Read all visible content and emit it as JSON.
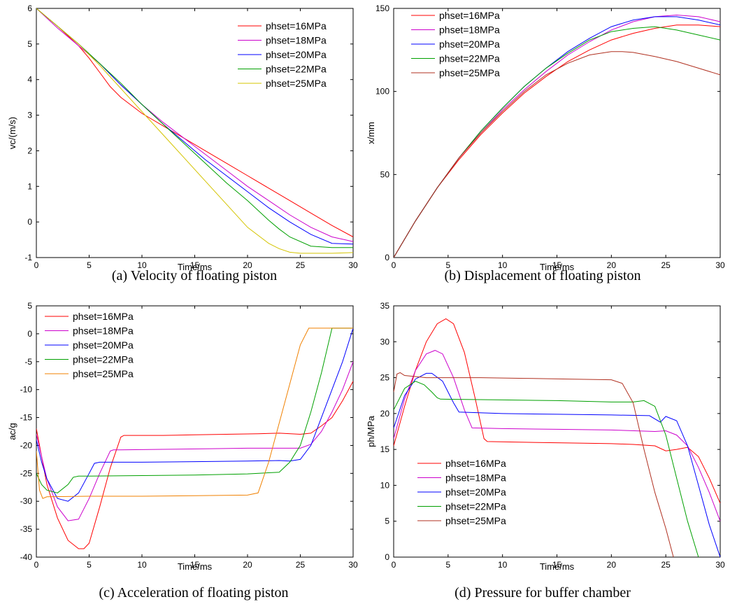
{
  "chart_data": [
    {
      "type": "line",
      "caption": "(a) Velocity of floating piston",
      "xlabel": "Time/ms",
      "ylabel": "vc/(m/s)",
      "xlim": [
        0,
        30
      ],
      "ylim": [
        -1,
        6
      ],
      "xticks": [
        0,
        5,
        10,
        15,
        20,
        25,
        30
      ],
      "yticks": [
        -1,
        0,
        1,
        2,
        3,
        4,
        5,
        6
      ],
      "legend_position": "top-right",
      "series": [
        {
          "name": "phset=16MPa",
          "color": "#ff0000",
          "x": [
            0,
            2,
            4,
            5,
            6,
            7,
            8,
            10,
            12,
            14,
            16,
            18,
            20,
            22,
            24,
            26,
            28,
            30
          ],
          "y": [
            6,
            5.5,
            4.95,
            4.6,
            4.2,
            3.8,
            3.5,
            3.05,
            2.7,
            2.35,
            2,
            1.65,
            1.3,
            0.95,
            0.6,
            0.25,
            -0.1,
            -0.42
          ]
        },
        {
          "name": "phset=18MPa",
          "color": "#cc00cc",
          "x": [
            0,
            2,
            4,
            6,
            8,
            10,
            12,
            14,
            16,
            18,
            20,
            22,
            24,
            26,
            28,
            30
          ],
          "y": [
            6,
            5.45,
            4.95,
            4.45,
            3.85,
            3.3,
            2.8,
            2.35,
            1.9,
            1.45,
            1.0,
            0.6,
            0.2,
            -0.15,
            -0.42,
            -0.55
          ]
        },
        {
          "name": "phset=20MPa",
          "color": "#0000ff",
          "x": [
            0,
            2,
            4,
            6,
            8,
            10,
            12,
            14,
            16,
            18,
            20,
            22,
            24,
            26,
            28,
            30
          ],
          "y": [
            6,
            5.5,
            5.0,
            4.45,
            3.85,
            3.3,
            2.75,
            2.25,
            1.75,
            1.3,
            0.85,
            0.4,
            0.0,
            -0.35,
            -0.6,
            -0.62
          ]
        },
        {
          "name": "phset=22MPa",
          "color": "#00a000",
          "x": [
            0,
            2,
            4,
            6,
            8,
            10,
            12,
            14,
            16,
            18,
            20,
            22,
            23,
            24,
            26,
            28,
            30
          ],
          "y": [
            6,
            5.5,
            5.0,
            4.45,
            3.9,
            3.3,
            2.75,
            2.2,
            1.65,
            1.1,
            0.6,
            0.05,
            -0.2,
            -0.42,
            -0.68,
            -0.72,
            -0.72
          ]
        },
        {
          "name": "phset=25MPa",
          "color": "#d4c400",
          "x": [
            0,
            2,
            4,
            6,
            8,
            10,
            12,
            14,
            16,
            18,
            20,
            22,
            23,
            24,
            25,
            26,
            28,
            30
          ],
          "y": [
            6,
            5.5,
            5.0,
            4.4,
            3.75,
            3.1,
            2.45,
            1.8,
            1.15,
            0.5,
            -0.15,
            -0.6,
            -0.75,
            -0.85,
            -0.88,
            -0.88,
            -0.88,
            -0.86
          ]
        }
      ]
    },
    {
      "type": "line",
      "caption": "(b) Displacement of floating piston",
      "xlabel": "Time/ms",
      "ylabel": "x/mm",
      "xlim": [
        0,
        30
      ],
      "ylim": [
        0,
        150
      ],
      "xticks": [
        0,
        5,
        10,
        15,
        20,
        25,
        30
      ],
      "yticks": [
        0,
        50,
        100,
        150
      ],
      "legend_position": "top-left",
      "series": [
        {
          "name": "phset=16MPa",
          "color": "#ff0000",
          "x": [
            0,
            2,
            4,
            6,
            8,
            10,
            12,
            14,
            16,
            18,
            20,
            22,
            24,
            26,
            28,
            30
          ],
          "y": [
            0,
            22,
            42,
            59,
            74,
            87,
            99,
            109,
            118,
            125,
            131,
            135,
            138,
            140,
            140,
            139
          ]
        },
        {
          "name": "phset=18MPa",
          "color": "#cc00cc",
          "x": [
            0,
            2,
            4,
            6,
            8,
            10,
            12,
            14,
            16,
            18,
            20,
            22,
            24,
            26,
            28,
            30
          ],
          "y": [
            0,
            22,
            42,
            60,
            75,
            89,
            101,
            112,
            122,
            130,
            137,
            142,
            145,
            146,
            145,
            142
          ]
        },
        {
          "name": "phset=20MPa",
          "color": "#0000ff",
          "x": [
            0,
            2,
            4,
            6,
            8,
            10,
            12,
            14,
            16,
            18,
            20,
            22,
            24,
            26,
            28,
            30
          ],
          "y": [
            0,
            22,
            42,
            60,
            76,
            90,
            103,
            114,
            124,
            132,
            139,
            143,
            145,
            145,
            143,
            140
          ]
        },
        {
          "name": "phset=22MPa",
          "color": "#00a000",
          "x": [
            0,
            2,
            4,
            6,
            8,
            10,
            12,
            14,
            16,
            18,
            20,
            22,
            24,
            26,
            28,
            30
          ],
          "y": [
            0,
            22,
            42,
            60,
            76,
            90,
            103,
            114,
            123,
            131,
            136,
            138,
            139,
            137,
            134,
            131
          ]
        },
        {
          "name": "phset=25MPa",
          "color": "#b03020",
          "x": [
            0,
            2,
            4,
            6,
            8,
            10,
            12,
            14,
            16,
            18,
            20,
            21,
            22,
            24,
            26,
            28,
            30
          ],
          "y": [
            0,
            22,
            42,
            60,
            75,
            88,
            100,
            110,
            117,
            122,
            124,
            124,
            123.5,
            121,
            118,
            114,
            110
          ]
        }
      ]
    },
    {
      "type": "line",
      "caption": "(c) Acceleration of floating piston",
      "xlabel": "Time/ms",
      "ylabel": "ac/g",
      "xlim": [
        0,
        30
      ],
      "ylim": [
        -40,
        5
      ],
      "xticks": [
        0,
        5,
        10,
        15,
        20,
        25,
        30
      ],
      "yticks": [
        -40,
        -35,
        -30,
        -25,
        -20,
        -15,
        -10,
        -5,
        0,
        5
      ],
      "legend_position": "top-left",
      "series": [
        {
          "name": "phset=16MPa",
          "color": "#ff0000",
          "x": [
            0,
            0.5,
            1,
            2,
            3,
            4,
            4.5,
            5,
            6,
            7,
            8,
            8.3,
            9,
            12,
            15,
            18,
            21,
            23,
            25,
            26,
            27,
            28,
            29,
            30
          ],
          "y": [
            -17,
            -22,
            -27,
            -33,
            -37,
            -38.5,
            -38.5,
            -37.5,
            -31,
            -24,
            -18.5,
            -18.2,
            -18.2,
            -18.2,
            -18.1,
            -18.0,
            -17.9,
            -17.8,
            -18.0,
            -17.8,
            -16.5,
            -15,
            -12,
            -8.5
          ]
        },
        {
          "name": "phset=18MPa",
          "color": "#cc00cc",
          "x": [
            0,
            0.5,
            1,
            2,
            3,
            4,
            5,
            6,
            7,
            7.3,
            8,
            12,
            16,
            20,
            23,
            25,
            26,
            27,
            28,
            29,
            30
          ],
          "y": [
            -18,
            -22,
            -26,
            -31,
            -33.5,
            -33.2,
            -29.5,
            -25,
            -21,
            -20.8,
            -20.8,
            -20.7,
            -20.6,
            -20.5,
            -20.5,
            -20.5,
            -19.8,
            -17.5,
            -14,
            -10,
            -5
          ]
        },
        {
          "name": "phset=20MPa",
          "color": "#0000ff",
          "x": [
            0,
            0.5,
            1,
            2,
            3,
            4,
            5,
            5.5,
            6,
            10,
            15,
            20,
            23,
            24,
            25,
            26,
            27,
            28,
            29,
            30
          ],
          "y": [
            -19,
            -23,
            -26,
            -29.5,
            -30,
            -28.5,
            -25,
            -23.2,
            -23.0,
            -23.0,
            -22.9,
            -22.8,
            -22.7,
            -22.8,
            -22.5,
            -20,
            -15,
            -10,
            -5,
            1
          ]
        },
        {
          "name": "phset=22MPa",
          "color": "#00a000",
          "x": [
            0,
            0.5,
            1,
            2,
            3,
            3.5,
            4,
            5,
            10,
            15,
            20,
            23,
            24,
            25,
            26,
            27,
            28,
            28.5,
            30
          ],
          "y": [
            -25,
            -27,
            -28,
            -28.5,
            -27,
            -25.7,
            -25.5,
            -25.5,
            -25.4,
            -25.3,
            -25.1,
            -24.8,
            -23,
            -20,
            -14,
            -7,
            1,
            1,
            1
          ]
        },
        {
          "name": "phset=25MPa",
          "color": "#f08000",
          "x": [
            0,
            0.3,
            0.6,
            1,
            5,
            10,
            15,
            20,
            21,
            22,
            23,
            24,
            25,
            25.8,
            26,
            28,
            30
          ],
          "y": [
            -21,
            -28,
            -29.5,
            -29.2,
            -29.1,
            -29.1,
            -29.0,
            -28.9,
            -28.5,
            -23,
            -16,
            -9,
            -2,
            1,
            1,
            1,
            1
          ]
        }
      ]
    },
    {
      "type": "line",
      "caption": "(d) Pressure for buffer chamber",
      "xlabel": "Time/ms",
      "ylabel": "ph/MPa",
      "xlim": [
        0,
        30
      ],
      "ylim": [
        0,
        35
      ],
      "xticks": [
        0,
        5,
        10,
        15,
        20,
        25,
        30
      ],
      "yticks": [
        0,
        5,
        10,
        15,
        20,
        25,
        30,
        35
      ],
      "legend_position": "bottom-left",
      "series": [
        {
          "name": "phset=16MPa",
          "color": "#ff0000",
          "x": [
            0,
            1,
            2,
            3,
            4,
            4.8,
            5.5,
            6.5,
            7.5,
            8.3,
            8.6,
            12,
            16,
            20,
            22,
            23,
            24,
            25,
            26,
            27,
            28,
            29,
            30
          ],
          "y": [
            15.5,
            21,
            26,
            30,
            32.5,
            33.2,
            32.5,
            28.5,
            22,
            16.5,
            16.1,
            16.0,
            15.9,
            15.8,
            15.7,
            15.6,
            15.5,
            14.8,
            15.0,
            15.3,
            14,
            11,
            7.5
          ]
        },
        {
          "name": "phset=18MPa",
          "color": "#cc00cc",
          "x": [
            0,
            1,
            2,
            3,
            3.8,
            4.5,
            5.5,
            6.5,
            7.2,
            10,
            15,
            20,
            24,
            25,
            26,
            27,
            28,
            29,
            30
          ],
          "y": [
            16.5,
            22,
            26,
            28.3,
            28.8,
            28.3,
            25,
            20.5,
            18.0,
            17.9,
            17.8,
            17.7,
            17.5,
            17.6,
            17.0,
            15.5,
            12.5,
            9,
            5
          ]
        },
        {
          "name": "phset=20MPa",
          "color": "#0000ff",
          "x": [
            0,
            1,
            2,
            3,
            3.5,
            4.5,
            5.5,
            6,
            10,
            15,
            20,
            23.5,
            24.5,
            25,
            26,
            27,
            28,
            29,
            30
          ],
          "y": [
            18,
            22.5,
            24.8,
            25.6,
            25.6,
            24.5,
            21.5,
            20.2,
            20.0,
            19.9,
            19.8,
            19.7,
            18.8,
            19.6,
            19.0,
            15.5,
            10,
            4.5,
            0
          ]
        },
        {
          "name": "phset=22MPa",
          "color": "#00a000",
          "x": [
            0,
            1,
            2,
            2.8,
            3.5,
            4,
            4.3,
            10,
            15,
            20,
            22,
            23,
            24,
            25,
            26,
            27,
            28
          ],
          "y": [
            20.5,
            23.5,
            24.5,
            24.0,
            23.0,
            22.2,
            22.0,
            21.9,
            21.8,
            21.6,
            21.6,
            21.8,
            21.0,
            17,
            11,
            5,
            0
          ]
        },
        {
          "name": "phset=25MPa",
          "color": "#b03020",
          "x": [
            0,
            0.3,
            0.6,
            1,
            3,
            8,
            12,
            16,
            20,
            21,
            22,
            23,
            24,
            25,
            25.7
          ],
          "y": [
            23,
            25.5,
            25.7,
            25.3,
            25.0,
            25.0,
            24.9,
            24.8,
            24.7,
            24.2,
            21.5,
            15,
            9,
            4,
            0
          ]
        }
      ]
    }
  ]
}
